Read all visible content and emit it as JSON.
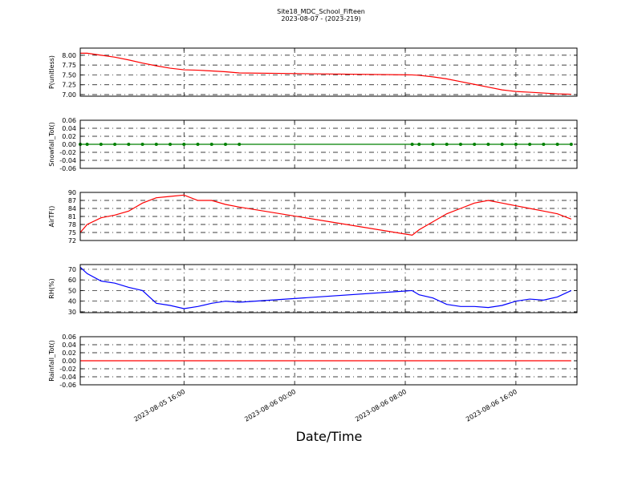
{
  "title": "Site18_MDC_School_Fifteen",
  "subtitle": "2023-08-07 - (2023-219)",
  "x_axis": {
    "label": "Date/Time",
    "x": [
      "2023-08-05 08:30",
      "2023-08-05 09:00",
      "2023-08-05 10:00",
      "2023-08-05 11:00",
      "2023-08-05 12:00",
      "2023-08-05 13:00",
      "2023-08-05 14:00",
      "2023-08-05 15:00",
      "2023-08-05 16:00",
      "2023-08-05 17:00",
      "2023-08-05 18:00",
      "2023-08-05 19:00",
      "2023-08-05 20:00",
      "2023-08-06 08:30",
      "2023-08-06 09:00",
      "2023-08-06 10:00",
      "2023-08-06 11:00",
      "2023-08-06 12:00",
      "2023-08-06 13:00",
      "2023-08-06 14:00",
      "2023-08-06 15:00",
      "2023-08-06 16:00",
      "2023-08-06 17:00",
      "2023-08-06 18:00",
      "2023-08-06 19:00",
      "2023-08-06 20:00"
    ],
    "xlim": [
      "2023-08-05 08:30",
      "2023-08-06 20:25"
    ],
    "xticks": [
      {
        "value": "2023-08-05 16:00",
        "label": "2023-08-05 16:00"
      },
      {
        "value": "2023-08-06 00:00",
        "label": "2023-08-06 00:00"
      },
      {
        "value": "2023-08-06 08:00",
        "label": "2023-08-06 08:00"
      },
      {
        "value": "2023-08-06 16:00",
        "label": "2023-08-06 16:00"
      }
    ]
  },
  "chart_data": [
    {
      "type": "line",
      "y_label": "P(unitless)",
      "ylim": [
        6.96,
        8.18
      ],
      "yticks": [
        {
          "value": 7,
          "label": "7.00"
        },
        {
          "value": 7.25,
          "label": "7.25"
        },
        {
          "value": 7.5,
          "label": "7.50"
        },
        {
          "value": 7.75,
          "label": "7.75"
        },
        {
          "value": 8,
          "label": "8.00"
        }
      ],
      "grid": true,
      "series": [
        {
          "color": "#ff0000",
          "markers": false,
          "values": [
            8.05,
            8.05,
            8.0,
            7.95,
            7.88,
            7.8,
            7.73,
            7.67,
            7.63,
            7.62,
            7.6,
            7.58,
            7.55,
            7.5,
            7.49,
            7.45,
            7.4,
            7.33,
            7.26,
            7.19,
            7.12,
            7.08,
            7.06,
            7.04,
            7.02,
            7.01
          ]
        }
      ]
    },
    {
      "type": "line",
      "y_label": "Snowfall_Tot()",
      "ylim": [
        -0.06,
        0.06
      ],
      "yticks": [
        {
          "value": -0.06,
          "label": "-0.06"
        },
        {
          "value": -0.04,
          "label": "-0.04"
        },
        {
          "value": -0.02,
          "label": "-0.02"
        },
        {
          "value": 0,
          "label": "0.00"
        },
        {
          "value": 0.02,
          "label": "0.02"
        },
        {
          "value": 0.04,
          "label": "0.04"
        },
        {
          "value": 0.06,
          "label": "0.06"
        }
      ],
      "grid": true,
      "series": [
        {
          "color": "#008000",
          "markers": true,
          "values": [
            0,
            0,
            0,
            0,
            0,
            0,
            0,
            0,
            0,
            0,
            0,
            0,
            0,
            0,
            0,
            0,
            0,
            0,
            0,
            0,
            0,
            0,
            0,
            0,
            0,
            0
          ]
        }
      ]
    },
    {
      "type": "line",
      "y_label": "AirTF()",
      "ylim": [
        72,
        90
      ],
      "yticks": [
        72,
        75,
        78,
        81,
        84,
        87,
        90
      ],
      "grid": true,
      "series": [
        {
          "color": "#ff0000",
          "markers": false,
          "values": [
            75,
            78,
            80.5,
            81.5,
            83,
            86,
            88,
            88.5,
            89,
            87,
            87,
            85.5,
            84.5,
            74,
            76,
            79,
            82,
            84,
            86,
            87,
            86,
            85,
            84,
            83,
            82,
            80
          ]
        }
      ]
    },
    {
      "type": "line",
      "y_label": "RH(%)",
      "ylim": [
        29.2,
        74.5
      ],
      "yticks": [
        30,
        40,
        50,
        60,
        70
      ],
      "grid": true,
      "series": [
        {
          "color": "#0000ff",
          "markers": false,
          "values": [
            72,
            66,
            59,
            57,
            53,
            50,
            38,
            36,
            33,
            35,
            38,
            40,
            39,
            50,
            46,
            43,
            37,
            35,
            35,
            34,
            36,
            40,
            42,
            41,
            44,
            50
          ]
        }
      ]
    },
    {
      "type": "line",
      "y_label": "Rainfall_Tot()",
      "ylim": [
        -0.06,
        0.06
      ],
      "yticks": [
        {
          "value": -0.06,
          "label": "-0.06"
        },
        {
          "value": -0.04,
          "label": "-0.04"
        },
        {
          "value": -0.02,
          "label": "-0.02"
        },
        {
          "value": 0,
          "label": "0.00"
        },
        {
          "value": 0.02,
          "label": "0.02"
        },
        {
          "value": 0.04,
          "label": "0.04"
        },
        {
          "value": 0.06,
          "label": "0.06"
        }
      ],
      "grid": true,
      "series": [
        {
          "color": "#ff0000",
          "markers": false,
          "values": [
            0,
            0,
            0,
            0,
            0,
            0,
            0,
            0,
            0,
            0,
            0,
            0,
            0,
            0,
            0,
            0,
            0,
            0,
            0,
            0,
            0,
            0,
            0,
            0,
            0,
            0
          ]
        }
      ]
    }
  ]
}
